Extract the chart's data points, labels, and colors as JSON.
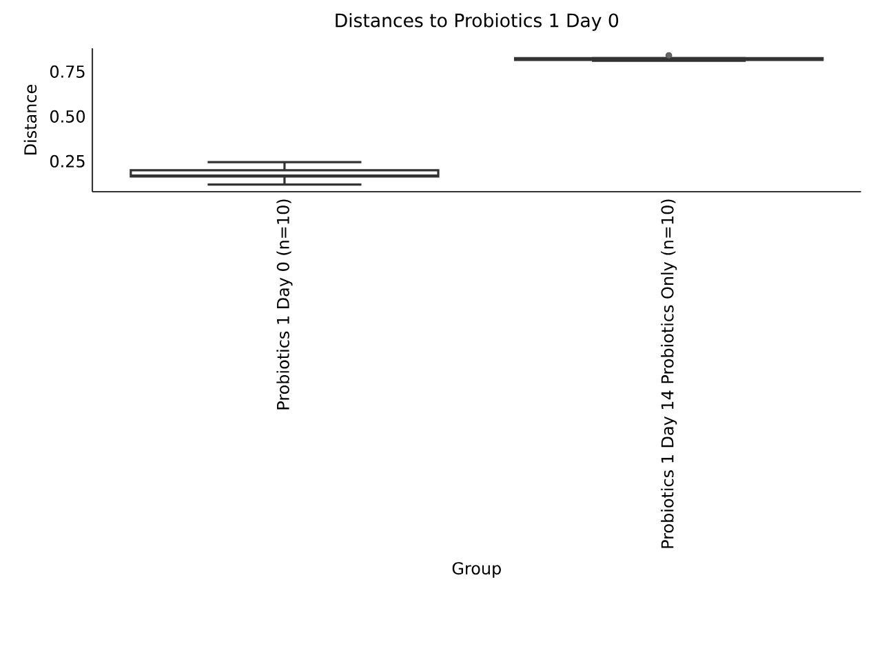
{
  "chart_data": {
    "type": "box",
    "title": "Distances to Probiotics 1 Day 0",
    "xlabel": "Group",
    "ylabel": "Distance",
    "categories": [
      "Probiotics 1 Day 0 (n=10)",
      "Probiotics 1 Day 14 Probiotics Only (n=10)"
    ],
    "boxes": [
      {
        "low": 0.12,
        "q1": 0.165,
        "median": 0.17,
        "q3": 0.2,
        "high": 0.245
      },
      {
        "low": 0.81,
        "q1": 0.815,
        "median": 0.82,
        "q3": 0.825,
        "high": 0.825,
        "outliers": [
          0.84
        ]
      }
    ],
    "color": "#ffffff",
    "ylim": [
      0.08,
      0.88
    ],
    "yticks": [
      0.25,
      {
        "value": 0.5,
        "label": "0.50"
      },
      0.75
    ],
    "grid": false
  }
}
